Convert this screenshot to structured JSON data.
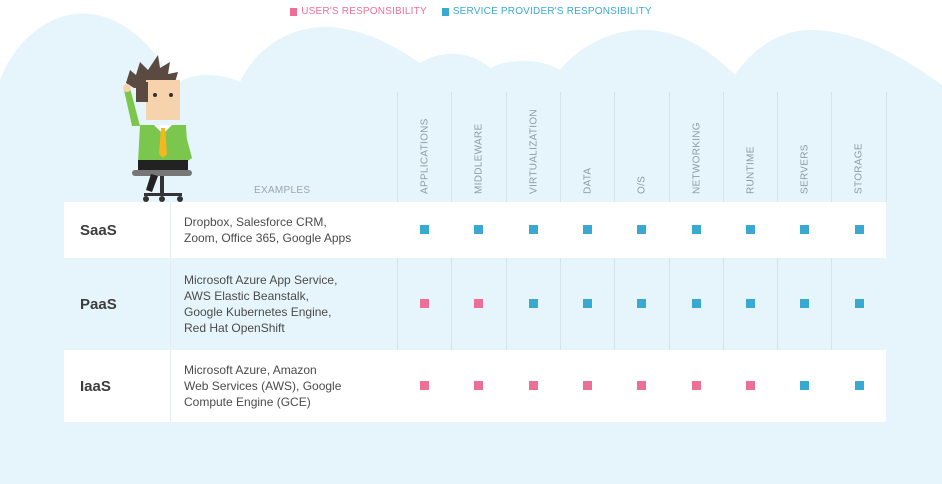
{
  "legend": {
    "user": {
      "label": "USER'S RESPONSIBILITY",
      "color": "#ee6f96"
    },
    "provider": {
      "label": "SERVICE PROVIDER'S RESPONSIBILITY",
      "color": "#3aa9d2"
    }
  },
  "table": {
    "examples_header": "EXAMPLES",
    "columns": [
      "APPLICATIONS",
      "MIDDLEWARE",
      "VIRTUALIZATION",
      "DATA",
      "O/S",
      "NETWORKING",
      "RUNTIME",
      "SERVERS",
      "STORAGE"
    ],
    "rows": [
      {
        "name": "SaaS",
        "examples": [
          "Dropbox, Salesforce CRM,",
          "Zoom, Office 365, Google Apps"
        ],
        "responsibility": [
          "provider",
          "provider",
          "provider",
          "provider",
          "provider",
          "provider",
          "provider",
          "provider",
          "provider"
        ]
      },
      {
        "name": "PaaS",
        "examples": [
          "Microsoft Azure App Service,",
          "AWS Elastic Beanstalk,",
          "Google Kubernetes Engine,",
          "Red Hat OpenShift"
        ],
        "responsibility": [
          "user",
          "user",
          "provider",
          "provider",
          "provider",
          "provider",
          "provider",
          "provider",
          "provider"
        ]
      },
      {
        "name": "IaaS",
        "examples": [
          "Microsoft Azure, Amazon",
          "Web Services (AWS), Google",
          "Compute Engine (GCE)"
        ],
        "responsibility": [
          "user",
          "user",
          "user",
          "user",
          "user",
          "user",
          "user",
          "provider",
          "provider"
        ]
      }
    ]
  },
  "colors": {
    "background": "#e6f5fc",
    "user": "#ee6f96",
    "provider": "#3aa9d2"
  }
}
